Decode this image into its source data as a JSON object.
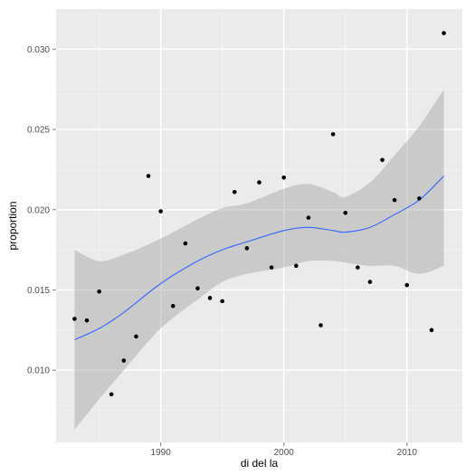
{
  "chart_data": {
    "type": "scatter",
    "title": "",
    "xlabel": "di del la",
    "ylabel": "proportion",
    "xlim": [
      1981.5,
      2014.5
    ],
    "ylim": [
      0.0055,
      0.0325
    ],
    "x_ticks": [
      1990,
      2000,
      2010
    ],
    "y_ticks": [
      0.01,
      0.015,
      0.02,
      0.025,
      0.03
    ],
    "x_tick_labels": [
      "1990",
      "2000",
      "2010"
    ],
    "y_tick_labels": [
      "0.010",
      "0.015",
      "0.020",
      "0.025",
      "0.030"
    ],
    "grid": true,
    "legend": "none",
    "series": [
      {
        "kind": "points",
        "x": [
          1983,
          1984,
          1985,
          1986,
          1987,
          1988,
          1989,
          1990,
          1991,
          1992,
          1993,
          1994,
          1995,
          1996,
          1997,
          1998,
          1999,
          2000,
          2001,
          2002,
          2003,
          2004,
          2005,
          2006,
          2007,
          2008,
          2009,
          2010,
          2011,
          2012,
          2013
        ],
        "y": [
          0.0132,
          0.0131,
          0.0149,
          0.0085,
          0.0106,
          0.0121,
          0.0221,
          0.0199,
          0.014,
          0.0179,
          0.0151,
          0.0145,
          0.0143,
          0.0211,
          0.0176,
          0.0217,
          0.0164,
          0.022,
          0.0165,
          0.0195,
          0.0128,
          0.0247,
          0.0198,
          0.0164,
          0.0155,
          0.0231,
          0.0206,
          0.0153,
          0.0207,
          0.0125,
          0.031
        ]
      },
      {
        "kind": "smooth",
        "x": [
          1983,
          1985,
          1987,
          1990,
          1993,
          1995,
          1997,
          2000,
          2002,
          2004,
          2005,
          2007,
          2009,
          2011,
          2013
        ],
        "y": [
          0.0119,
          0.0126,
          0.0136,
          0.0154,
          0.0168,
          0.0175,
          0.018,
          0.0187,
          0.0189,
          0.0187,
          0.0186,
          0.0189,
          0.0197,
          0.0206,
          0.0221
        ],
        "lower": [
          0.0063,
          0.0082,
          0.01,
          0.0126,
          0.0144,
          0.0155,
          0.016,
          0.0164,
          0.0168,
          0.0168,
          0.0167,
          0.0165,
          0.0165,
          0.016,
          0.0165
        ],
        "upper": [
          0.0175,
          0.0168,
          0.0172,
          0.0182,
          0.0194,
          0.0201,
          0.0204,
          0.0213,
          0.0216,
          0.0211,
          0.0208,
          0.0217,
          0.0234,
          0.0252,
          0.0275
        ]
      }
    ]
  },
  "colors": {
    "panel": "#ebebeb",
    "grid_major": "#ffffff",
    "grid_minor": "#f5f5f5",
    "points": "#000000",
    "smooth_line": "#3366ff",
    "ribbon": "#999999"
  }
}
